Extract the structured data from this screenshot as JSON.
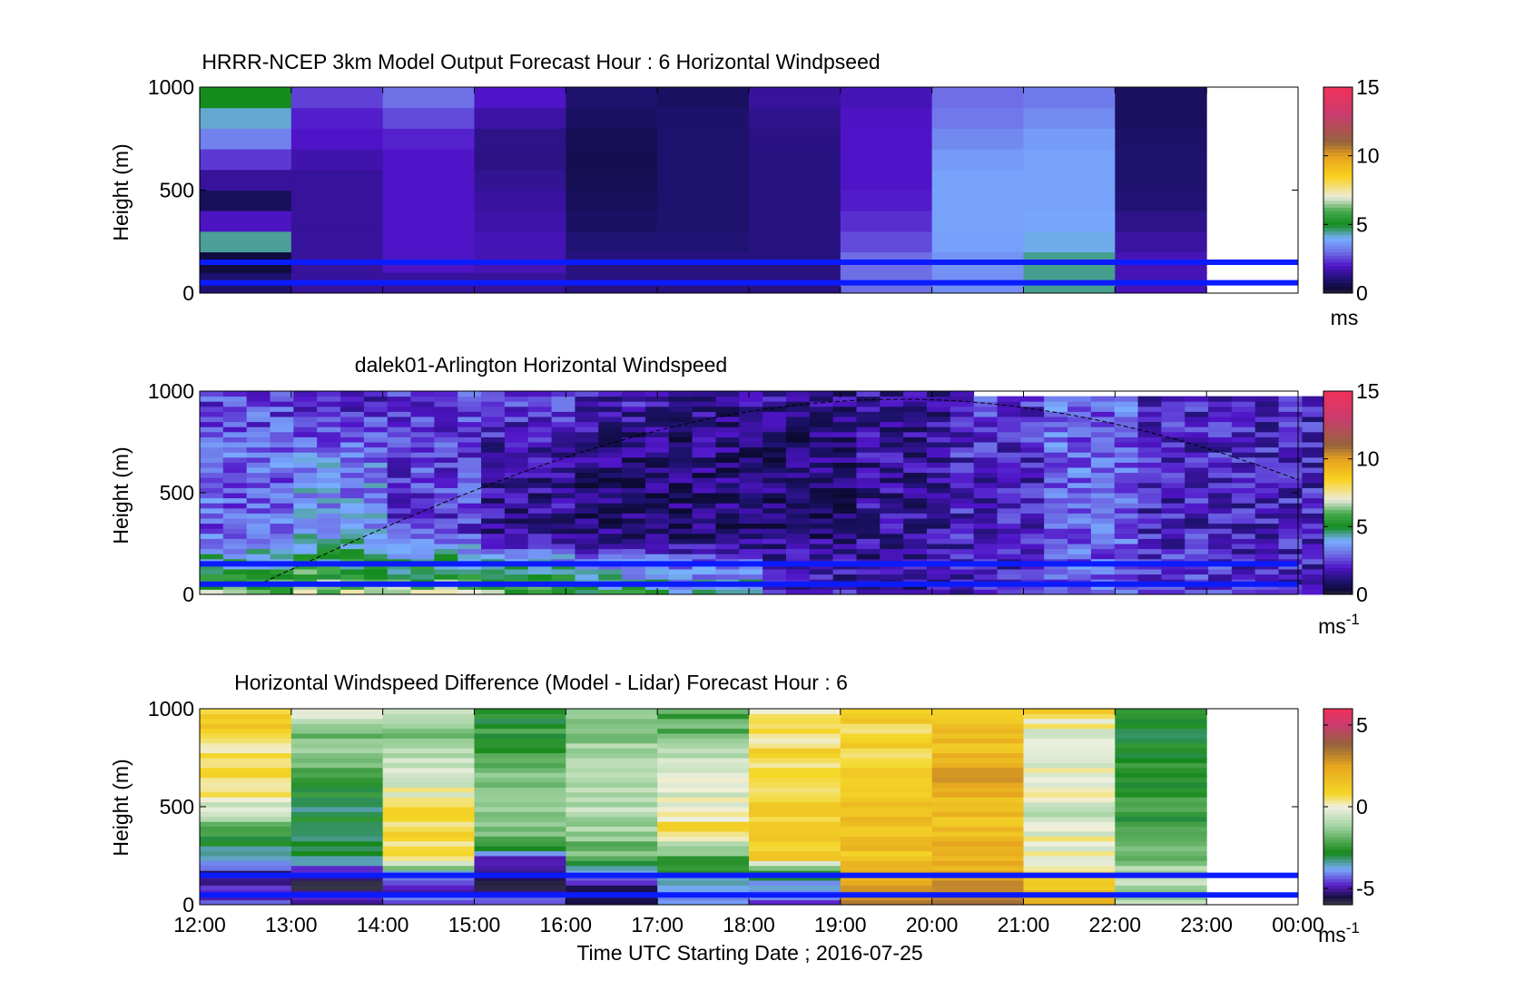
{
  "figure": {
    "xlabel": "Time UTC  Starting Date ; 2016-07-25",
    "x_ticks": [
      "12:00",
      "13:00",
      "14:00",
      "15:00",
      "16:00",
      "17:00",
      "18:00",
      "19:00",
      "20:00",
      "21:00",
      "22:00",
      "23:00",
      "00:00"
    ]
  },
  "chart_data": [
    {
      "type": "heatmap",
      "title": "HRRR-NCEP 3km Model Output   Forecast Hour : 6 Horizontal Windpseed",
      "ylabel": "Height (m)",
      "y_ticks": [
        "0",
        "500",
        "1000"
      ],
      "ylim": [
        0,
        1000
      ],
      "colorbar": {
        "ticks": [
          "0",
          "5",
          "10",
          "15"
        ],
        "range": [
          0,
          15
        ],
        "unit": "ms"
      },
      "reference_lines_m": [
        50,
        150
      ],
      "columns": [
        {
          "hour": "12:00",
          "profile_ms": [
            1.0,
            0.3,
            5.5,
            0.4,
            1.0,
            2.0,
            3.0,
            4.0,
            5.0,
            5.0
          ]
        },
        {
          "hour": "13:00",
          "profile_ms": [
            1.5,
            1.5,
            1.5,
            1.5,
            1.5,
            1.5,
            2.0,
            2.0,
            2.5,
            2.5
          ]
        },
        {
          "hour": "14:00",
          "profile_ms": [
            1.5,
            2.0,
            2.0,
            2.0,
            2.0,
            2.0,
            2.0,
            2.5,
            3.0,
            3.5
          ]
        },
        {
          "hour": "15:00",
          "profile_ms": [
            1.5,
            1.8,
            1.8,
            1.6,
            1.5,
            1.3,
            1.2,
            1.5,
            2.0,
            2.0
          ]
        },
        {
          "hour": "16:00",
          "profile_ms": [
            1.2,
            1.2,
            1.0,
            0.8,
            0.7,
            0.6,
            0.6,
            0.8,
            1.0,
            1.0
          ]
        },
        {
          "hour": "17:00",
          "profile_ms": [
            1.2,
            1.2,
            1.0,
            1.0,
            1.0,
            1.0,
            1.0,
            1.0,
            0.8,
            0.8
          ]
        },
        {
          "hour": "18:00",
          "profile_ms": [
            1.2,
            1.2,
            1.2,
            1.2,
            1.2,
            1.2,
            1.2,
            1.3,
            1.5,
            1.5
          ]
        },
        {
          "hour": "19:00",
          "profile_ms": [
            3.0,
            3.0,
            2.5,
            2.2,
            2.0,
            2.0,
            2.0,
            2.0,
            1.8,
            1.8
          ]
        },
        {
          "hour": "20:00",
          "profile_ms": [
            3.5,
            3.6,
            3.8,
            3.8,
            3.8,
            3.8,
            3.5,
            3.2,
            3.0,
            3.0
          ]
        },
        {
          "hour": "21:00",
          "profile_ms": [
            4.5,
            4.5,
            4.0,
            3.8,
            3.8,
            3.8,
            3.8,
            3.5,
            3.2,
            3.2
          ]
        },
        {
          "hour": "22:00",
          "profile_ms": [
            1.8,
            1.8,
            1.5,
            1.2,
            1.0,
            1.0,
            1.0,
            0.8,
            0.8,
            0.8
          ]
        }
      ]
    },
    {
      "type": "heatmap",
      "title": "dalek01-Arlington  Horizontal Windspeed",
      "ylabel": "Height (m)",
      "y_ticks": [
        "0",
        "500",
        "1000"
      ],
      "ylim": [
        0,
        1000
      ],
      "colorbar": {
        "ticks": [
          "0",
          "5",
          "10",
          "15"
        ],
        "range": [
          0,
          15
        ],
        "unit": "ms",
        "unit_superscript": "-1"
      },
      "reference_lines_m": [
        50,
        150
      ],
      "overlay_line": "dashed",
      "lidar_profile_summary": [
        {
          "hour": "12:00",
          "low_ms": 6.0,
          "mid_ms": 3.0,
          "high_ms": 2.5
        },
        {
          "hour": "13:00",
          "low_ms": 6.5,
          "mid_ms": 3.5,
          "high_ms": 2.0
        },
        {
          "hour": "14:00",
          "low_ms": 6.5,
          "mid_ms": 2.5,
          "high_ms": 2.5
        },
        {
          "hour": "15:00",
          "low_ms": 6.0,
          "mid_ms": 1.5,
          "high_ms": 2.5
        },
        {
          "hour": "16:00",
          "low_ms": 5.0,
          "mid_ms": 1.0,
          "high_ms": 2.0
        },
        {
          "hour": "17:00",
          "low_ms": 4.5,
          "mid_ms": 1.0,
          "high_ms": 1.5
        },
        {
          "hour": "18:00",
          "low_ms": 2.0,
          "mid_ms": 1.0,
          "high_ms": 1.5
        },
        {
          "hour": "19:00",
          "low_ms": 1.5,
          "mid_ms": 1.5,
          "high_ms": 1.5
        },
        {
          "hour": "20:00",
          "low_ms": 2.0,
          "mid_ms": 2.0,
          "high_ms": 2.5
        },
        {
          "hour": "21:00",
          "low_ms": 3.0,
          "mid_ms": 3.0,
          "high_ms": 3.0
        },
        {
          "hour": "22:00",
          "low_ms": 2.5,
          "mid_ms": 2.0,
          "high_ms": 2.0
        },
        {
          "hour": "23:00",
          "low_ms": 2.0,
          "mid_ms": 2.0,
          "high_ms": 2.0
        }
      ]
    },
    {
      "type": "heatmap",
      "title": "Horizontal Windspeed Difference (Model - Lidar) Forecast Hour : 6",
      "ylabel": "Height (m)",
      "y_ticks": [
        "0",
        "500",
        "1000"
      ],
      "ylim": [
        0,
        1000
      ],
      "colorbar": {
        "ticks": [
          "-5",
          "0",
          "5"
        ],
        "range": [
          -6,
          6
        ],
        "unit": "ms",
        "unit_superscript": "-1"
      },
      "reference_lines_m": [
        50,
        150
      ],
      "columns": [
        {
          "hour": "12:00",
          "profile_ms": [
            -4.5,
            -5.5,
            -4.0,
            -2.5,
            -1.0,
            0.5,
            0.5,
            0.5,
            1.0,
            1.0
          ]
        },
        {
          "hour": "13:00",
          "profile_ms": [
            -5.0,
            -6.0,
            -3.0,
            -3.0,
            -3.0,
            -2.5,
            -2.0,
            -1.5,
            -1.5,
            0.5
          ]
        },
        {
          "hour": "14:00",
          "profile_ms": [
            -4.5,
            -5.0,
            0.5,
            0.5,
            0.8,
            0.0,
            -0.5,
            -1.0,
            -1.5,
            -1.0
          ]
        },
        {
          "hour": "15:00",
          "profile_ms": [
            -4.5,
            -5.5,
            -5.0,
            -1.5,
            -1.5,
            -1.0,
            -2.0,
            -2.5,
            -2.5,
            -2.5
          ]
        },
        {
          "hour": "16:00",
          "profile_ms": [
            -5.0,
            -5.0,
            -2.0,
            -1.5,
            -1.0,
            -1.0,
            -1.0,
            -1.0,
            -1.5,
            -1.5
          ]
        },
        {
          "hour": "17:00",
          "profile_ms": [
            -4.0,
            -3.5,
            -2.5,
            0.5,
            0.5,
            -0.5,
            -0.5,
            -1.0,
            -2.0,
            -2.0
          ]
        },
        {
          "hour": "18:00",
          "profile_ms": [
            -4.5,
            -4.0,
            1.0,
            1.0,
            1.0,
            1.0,
            0.8,
            0.8,
            0.5,
            0.5
          ]
        },
        {
          "hour": "19:00",
          "profile_ms": [
            3.0,
            2.5,
            1.5,
            1.5,
            1.5,
            1.0,
            1.0,
            1.0,
            1.0,
            0.8
          ]
        },
        {
          "hour": "20:00",
          "profile_ms": [
            3.0,
            2.5,
            2.0,
            2.0,
            1.5,
            2.0,
            2.5,
            1.8,
            1.5,
            1.5
          ]
        },
        {
          "hour": "21:00",
          "profile_ms": [
            2.0,
            1.5,
            0.0,
            0.0,
            -0.5,
            0.0,
            0.0,
            0.0,
            0.0,
            1.0
          ]
        },
        {
          "hour": "22:00",
          "profile_ms": [
            -1.0,
            -1.0,
            -1.5,
            -2.0,
            -2.5,
            -2.5,
            -2.5,
            -3.0,
            -3.0,
            -3.0
          ]
        }
      ]
    }
  ]
}
